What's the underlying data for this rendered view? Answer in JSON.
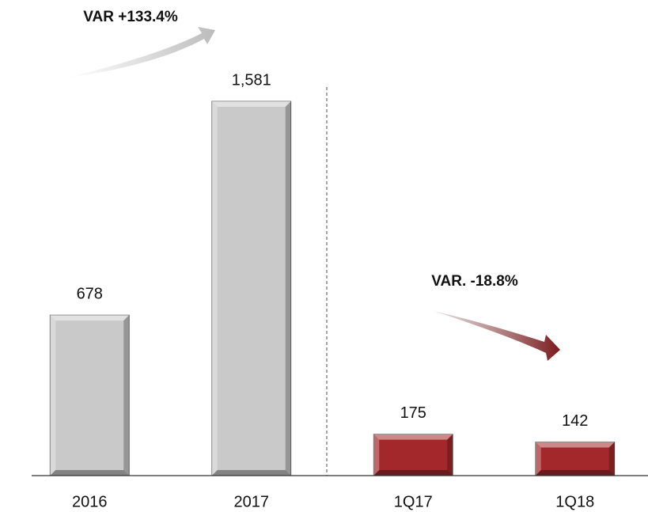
{
  "chart_data": {
    "type": "bar",
    "categories": [
      "2016",
      "2017",
      "1Q17",
      "1Q18"
    ],
    "values": [
      678,
      1581,
      175,
      142
    ],
    "value_labels": [
      "678",
      "1,581",
      "175",
      "142"
    ],
    "colors": [
      "#c9c9c9",
      "#c9c9c9",
      "#a3282b",
      "#a3282b"
    ],
    "annotations": [
      "VAR +133.4%",
      "VAR. -18.8%"
    ]
  }
}
